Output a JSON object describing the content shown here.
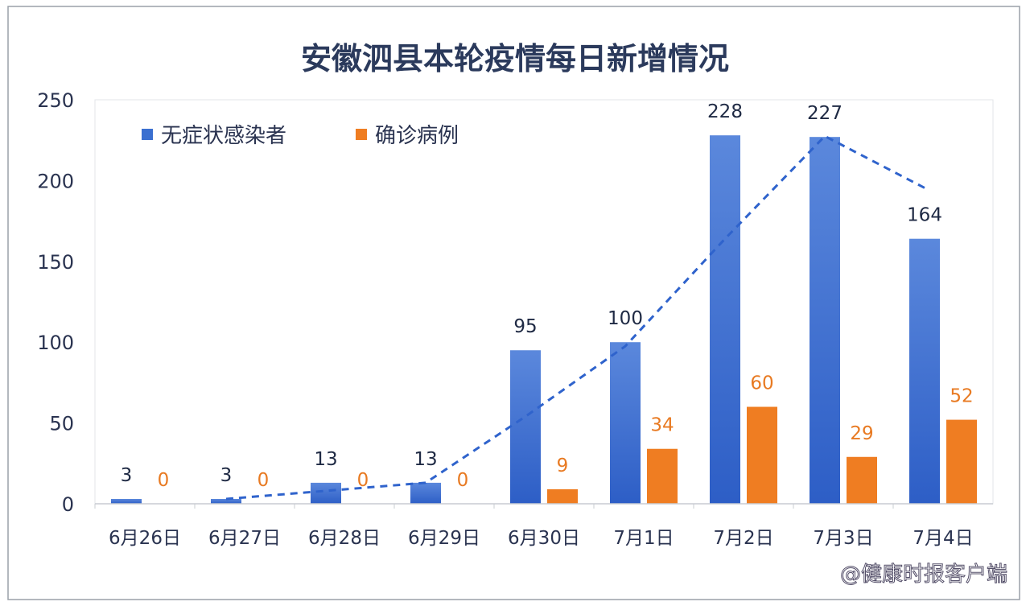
{
  "chart_data": {
    "type": "bar",
    "title": "安徽泗县本轮疫情每日新增情况",
    "categories": [
      "6月26日",
      "6月27日",
      "6月28日",
      "6月29日",
      "6月30日",
      "7月1日",
      "7月2日",
      "7月3日",
      "7月4日"
    ],
    "series": [
      {
        "name": "无症状感染者",
        "color": "#3a6fd0",
        "values": [
          3,
          3,
          13,
          13,
          95,
          100,
          228,
          227,
          164
        ]
      },
      {
        "name": "确诊病例",
        "color": "#ef7d22",
        "values": [
          0,
          0,
          0,
          0,
          9,
          34,
          60,
          29,
          52
        ]
      }
    ],
    "trendline": {
      "type": "2-period moving average",
      "series": "无症状感染者",
      "style": "dashed",
      "color": "#2f63cc"
    },
    "ylim": [
      0,
      250
    ],
    "yticks": [
      0,
      50,
      100,
      150,
      200,
      250
    ],
    "legend": "top-left",
    "grid": false,
    "xlabel": "",
    "ylabel": ""
  },
  "watermark": "@健康时报客户端"
}
